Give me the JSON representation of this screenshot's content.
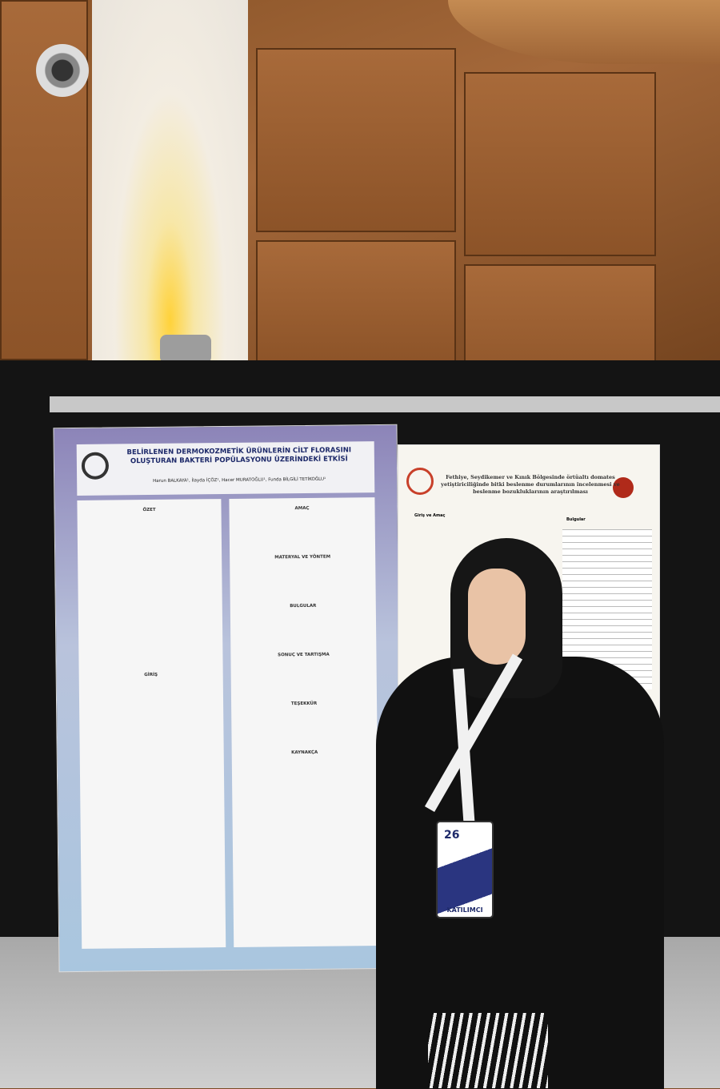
{
  "left_poster": {
    "title": "BELİRLENEN DERMOKOZMETİK ÜRÜNLERİN CİLT FLORASINI OLUŞTURAN BAKTERİ POPÜLASYONU ÜZERİNDEKİ ETKİSİ",
    "authors": "Harun BALKAYA¹, İlayda İÇÖZ¹, Hacer MURATOĞLU¹, Funda BİLGİLİ TETİKOĞLU¹",
    "sections": {
      "left": [
        "ÖZET",
        "GİRİŞ"
      ],
      "right": [
        "AMAÇ",
        "MATERYAL VE YÖNTEM",
        "BULGULAR",
        "SONUÇ VE TARTIŞMA",
        "TEŞEKKÜR",
        "KAYNAKÇA"
      ]
    }
  },
  "right_poster": {
    "title": "Fethiye, Seydikemer ve Kınık Bölgesinde örtüaltı domates yetiştiriciliğinde bitki beslenme durumlarının incelenmesi ve beslenme bozukluklarının araştırılması",
    "sections": [
      "Giriş ve Amaç",
      "Bulgular"
    ]
  },
  "badge": {
    "number": "26",
    "label": "KATILIMCI"
  }
}
